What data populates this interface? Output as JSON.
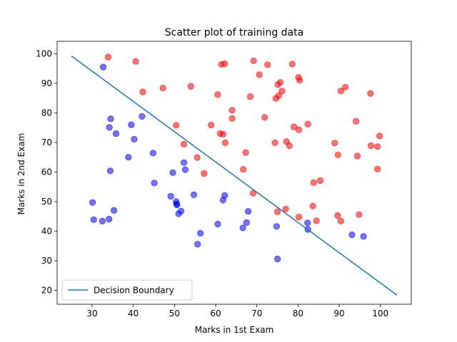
{
  "chart_data": {
    "type": "scatter",
    "title": "Scatter plot of training data",
    "xlabel": "Marks in 1st Exam",
    "ylabel": "Marks in 2nd Exam",
    "xlim": [
      21.5,
      107.5
    ],
    "ylim": [
      15.3,
      104.2
    ],
    "xticks": [
      30,
      40,
      50,
      60,
      70,
      80,
      90,
      100
    ],
    "yticks": [
      20,
      30,
      40,
      50,
      60,
      70,
      80,
      90,
      100
    ],
    "grid": false,
    "legend": {
      "position": "lower-left",
      "entries": [
        {
          "label": "Decision Boundary",
          "color": "#1f77b4"
        }
      ]
    },
    "series": [
      {
        "color": "#ff0000",
        "points": [
          [
            40.6,
            97.4
          ],
          [
            33.9,
            98.9
          ],
          [
            61.4,
            96.4
          ],
          [
            62.2,
            96.6
          ],
          [
            69.2,
            97.6
          ],
          [
            72.6,
            96.3
          ],
          [
            78.6,
            96.5
          ],
          [
            70.6,
            92.9
          ],
          [
            80.1,
            92.0
          ],
          [
            80.4,
            91.0
          ],
          [
            75.1,
            89.6
          ],
          [
            75.7,
            90.3
          ],
          [
            91.5,
            88.7
          ],
          [
            90.4,
            87.4
          ],
          [
            42.3,
            87.1
          ],
          [
            47.2,
            88.4
          ],
          [
            54.0,
            89.0
          ],
          [
            60.5,
            86.2
          ],
          [
            68.4,
            85.5
          ],
          [
            74.6,
            84.9
          ],
          [
            75.3,
            85.8
          ],
          [
            76.1,
            87.4
          ],
          [
            97.6,
            86.6
          ],
          [
            64.0,
            80.9
          ],
          [
            64.0,
            78.1
          ],
          [
            71.9,
            78.5
          ],
          [
            94.1,
            77.2
          ],
          [
            50.4,
            75.8
          ],
          [
            58.9,
            75.9
          ],
          [
            61.1,
            73.0
          ],
          [
            61.8,
            72.8
          ],
          [
            79.0,
            75.3
          ],
          [
            80.2,
            74.3
          ],
          [
            82.4,
            76.2
          ],
          [
            99.8,
            72.2
          ],
          [
            52.3,
            69.4
          ],
          [
            62.3,
            69.9
          ],
          [
            74.4,
            69.9
          ],
          [
            77.2,
            70.3
          ],
          [
            77.9,
            68.9
          ],
          [
            88.9,
            69.8
          ],
          [
            97.7,
            68.9
          ],
          [
            99.3,
            68.6
          ],
          [
            67.3,
            66.6
          ],
          [
            89.7,
            65.8
          ],
          [
            94.4,
            65.4
          ],
          [
            55.5,
            64.9
          ],
          [
            57.2,
            59.5
          ],
          [
            66.7,
            60.9
          ],
          [
            99.3,
            61.0
          ],
          [
            83.8,
            56.4
          ],
          [
            85.4,
            57.1
          ],
          [
            69.1,
            52.8
          ],
          [
            83.6,
            48.5
          ],
          [
            77.0,
            47.5
          ],
          [
            75.0,
            46.6
          ],
          [
            80.2,
            44.8
          ],
          [
            84.5,
            43.5
          ],
          [
            89.6,
            45.3
          ],
          [
            90.4,
            43.4
          ],
          [
            94.8,
            45.6
          ]
        ]
      },
      {
        "color": "#0000ff",
        "points": [
          [
            32.7,
            95.5
          ],
          [
            34.5,
            78.0
          ],
          [
            34.2,
            75.1
          ],
          [
            35.8,
            73.0
          ],
          [
            39.5,
            76.0
          ],
          [
            40.2,
            71.1
          ],
          [
            42.1,
            78.8
          ],
          [
            38.8,
            65.0
          ],
          [
            44.8,
            66.4
          ],
          [
            52.3,
            63.2
          ],
          [
            34.4,
            60.4
          ],
          [
            49.6,
            59.8
          ],
          [
            52.6,
            60.8
          ],
          [
            45.1,
            56.3
          ],
          [
            30.1,
            49.7
          ],
          [
            30.4,
            43.9
          ],
          [
            32.5,
            43.4
          ],
          [
            34.1,
            44.1
          ],
          [
            35.3,
            47.0
          ],
          [
            49.1,
            51.8
          ],
          [
            50.4,
            50.0
          ],
          [
            50.5,
            49.2
          ],
          [
            50.6,
            48.9
          ],
          [
            51.0,
            45.9
          ],
          [
            51.6,
            46.8
          ],
          [
            54.7,
            52.3
          ],
          [
            61.8,
            50.5
          ],
          [
            62.2,
            52.1
          ],
          [
            60.5,
            42.4
          ],
          [
            66.6,
            41.1
          ],
          [
            67.5,
            42.9
          ],
          [
            67.9,
            46.7
          ],
          [
            74.8,
            41.6
          ],
          [
            82.4,
            40.6
          ],
          [
            82.3,
            42.8
          ],
          [
            93.1,
            38.8
          ],
          [
            95.9,
            38.2
          ],
          [
            56.3,
            39.3
          ],
          [
            55.6,
            35.6
          ],
          [
            75.0,
            30.6
          ]
        ]
      }
    ],
    "line": {
      "label": "Decision Boundary",
      "color": "#1f77b4",
      "points": [
        [
          25.0,
          99.2
        ],
        [
          104.0,
          18.4
        ]
      ]
    }
  }
}
